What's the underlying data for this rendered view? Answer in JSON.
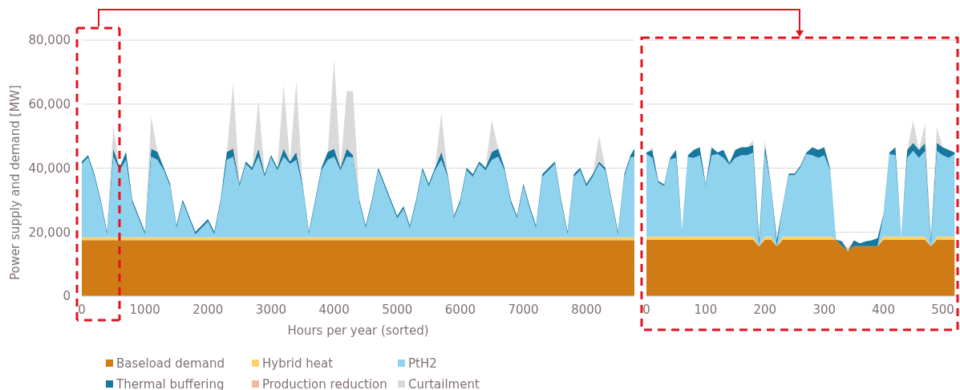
{
  "chart_data": [
    {
      "type": "area",
      "stacked": true,
      "xlabel": "Hours per year (sorted)",
      "ylabel": "Power supply and demand [MW]",
      "xlim": [
        0,
        8760
      ],
      "ylim": [
        0,
        80000
      ],
      "xticks": [
        0,
        1000,
        2000,
        3000,
        4000,
        5000,
        6000,
        7000,
        8000
      ],
      "yticks": [
        0,
        {
          "value": 20000,
          "label": "20,000"
        },
        {
          "value": 40000,
          "label": "40,000"
        },
        {
          "value": 60000,
          "label": "60,000"
        },
        {
          "value": 80000,
          "label": "80,000"
        }
      ],
      "grid": "y",
      "legend": "bottom",
      "x": [
        0,
        100,
        200,
        300,
        400,
        500,
        600,
        700,
        800,
        900,
        1000,
        1100,
        1200,
        1300,
        1400,
        1500,
        1600,
        1700,
        1800,
        1900,
        2000,
        2100,
        2200,
        2300,
        2400,
        2500,
        2600,
        2700,
        2800,
        2900,
        3000,
        3100,
        3200,
        3300,
        3400,
        3500,
        3600,
        3700,
        3800,
        3900,
        4000,
        4100,
        4200,
        4300,
        4400,
        4500,
        4600,
        4700,
        4800,
        4900,
        5000,
        5100,
        5200,
        5300,
        5400,
        5500,
        5600,
        5700,
        5800,
        5900,
        6000,
        6100,
        6200,
        6300,
        6400,
        6500,
        6600,
        6700,
        6800,
        6900,
        7000,
        7100,
        7200,
        7300,
        7400,
        7500,
        7600,
        7700,
        7800,
        7900,
        8000,
        8100,
        8200,
        8300,
        8400,
        8500,
        8600,
        8700,
        8760
      ],
      "series": [
        {
          "name": "Baseload demand",
          "color": "#d07c16",
          "values": [
            17500,
            17500,
            17500,
            17500,
            17500,
            17500,
            17500,
            17500,
            17500,
            17500,
            17500,
            17500,
            17500,
            17500,
            17500,
            17500,
            17500,
            17500,
            17500,
            17500,
            17500,
            17500,
            17500,
            17500,
            17500,
            17500,
            17500,
            17500,
            17500,
            17500,
            17500,
            17500,
            17500,
            17500,
            17500,
            17500,
            17500,
            17500,
            17500,
            17500,
            17500,
            17500,
            17500,
            17500,
            17500,
            17500,
            17500,
            17500,
            17500,
            17500,
            17500,
            17500,
            17500,
            17500,
            17500,
            17500,
            17500,
            17500,
            17500,
            17500,
            17500,
            17500,
            17500,
            17500,
            17500,
            17500,
            17500,
            17500,
            17500,
            17500,
            17500,
            17500,
            17500,
            17500,
            17500,
            17500,
            17500,
            17500,
            17500,
            17500,
            17500,
            17500,
            17500,
            17500,
            17500,
            17500,
            17500,
            17500,
            17500
          ]
        },
        {
          "name": "Hybrid heat",
          "color": "#ffd166",
          "values": [
            900,
            900,
            900,
            900,
            900,
            900,
            900,
            900,
            900,
            900,
            900,
            900,
            900,
            900,
            900,
            900,
            900,
            900,
            900,
            900,
            900,
            900,
            900,
            900,
            900,
            900,
            900,
            900,
            900,
            900,
            900,
            900,
            900,
            900,
            900,
            900,
            900,
            900,
            900,
            900,
            900,
            900,
            900,
            900,
            900,
            900,
            900,
            900,
            900,
            900,
            900,
            900,
            900,
            900,
            900,
            900,
            900,
            900,
            900,
            900,
            900,
            900,
            900,
            900,
            900,
            900,
            900,
            900,
            900,
            900,
            900,
            900,
            900,
            900,
            900,
            900,
            900,
            900,
            900,
            900,
            900,
            900,
            900,
            900,
            900,
            900,
            900,
            900,
            900
          ]
        },
        {
          "name": "PtH2",
          "color": "#8fd3ee",
          "values": [
            22900,
            24900,
            18900,
            10900,
            900,
            25200,
            20900,
            24200,
            10900,
            5900,
            900,
            25200,
            24200,
            20900,
            15900,
            2900,
            10900,
            5900,
            900,
            2900,
            4900,
            900,
            10900,
            24200,
            25200,
            15900,
            22900,
            20900,
            25200,
            18900,
            24900,
            20900,
            25200,
            22900,
            24200,
            15900,
            900,
            10900,
            20900,
            24200,
            25200,
            20900,
            25200,
            24900,
            10900,
            2900,
            10900,
            20900,
            15900,
            10900,
            5900,
            8900,
            2900,
            10900,
            20900,
            15900,
            20900,
            24200,
            18900,
            5900,
            10900,
            20900,
            18900,
            22900,
            20900,
            24200,
            25200,
            20900,
            10900,
            5900,
            15900,
            8900,
            2900,
            18900,
            20900,
            22900,
            10900,
            900,
            18900,
            20900,
            15900,
            18900,
            22900,
            20900,
            10900,
            900,
            18900,
            24900,
            25200
          ]
        },
        {
          "name": "Thermal buffering",
          "color": "#16779f",
          "values": [
            800,
            800,
            800,
            800,
            800,
            2500,
            800,
            2500,
            800,
            800,
            800,
            2500,
            2500,
            800,
            800,
            800,
            800,
            800,
            800,
            800,
            800,
            800,
            800,
            2500,
            2500,
            800,
            800,
            800,
            2500,
            800,
            800,
            800,
            2500,
            800,
            2500,
            800,
            800,
            800,
            800,
            2500,
            2500,
            800,
            2500,
            800,
            800,
            800,
            800,
            800,
            800,
            800,
            800,
            800,
            800,
            800,
            800,
            800,
            800,
            2500,
            800,
            800,
            800,
            800,
            800,
            800,
            800,
            2500,
            2500,
            800,
            800,
            800,
            800,
            800,
            800,
            800,
            800,
            800,
            800,
            800,
            800,
            800,
            800,
            800,
            800,
            800,
            800,
            800,
            800,
            800,
            2500
          ]
        },
        {
          "name": "Production reduction",
          "color": "#f4b89a",
          "values": [
            0,
            0,
            0,
            0,
            0,
            0,
            0,
            0,
            0,
            0,
            0,
            0,
            0,
            0,
            0,
            0,
            0,
            0,
            0,
            0,
            0,
            0,
            0,
            0,
            500,
            0,
            0,
            0,
            0,
            0,
            0,
            0,
            0,
            0,
            0,
            0,
            0,
            0,
            0,
            0,
            0,
            0,
            0,
            0,
            0,
            0,
            0,
            0,
            0,
            0,
            0,
            0,
            0,
            0,
            0,
            0,
            0,
            0,
            0,
            0,
            0,
            0,
            0,
            0,
            0,
            0,
            0,
            0,
            0,
            0,
            0,
            0,
            0,
            0,
            0,
            0,
            0,
            0,
            0,
            0,
            0,
            0,
            0,
            0,
            0,
            0,
            0,
            0,
            0
          ]
        },
        {
          "name": "Curtailment",
          "color": "#d9d9d9",
          "values": [
            0,
            0,
            0,
            0,
            0,
            7000,
            0,
            0,
            0,
            0,
            0,
            10000,
            0,
            0,
            0,
            0,
            0,
            0,
            0,
            0,
            0,
            0,
            0,
            0,
            20000,
            0,
            0,
            0,
            15000,
            0,
            0,
            0,
            20000,
            0,
            22000,
            0,
            0,
            0,
            0,
            0,
            28000,
            0,
            18000,
            20000,
            0,
            0,
            0,
            0,
            0,
            0,
            0,
            0,
            0,
            0,
            0,
            0,
            0,
            12000,
            0,
            0,
            0,
            0,
            0,
            0,
            0,
            10000,
            0,
            0,
            0,
            0,
            0,
            0,
            0,
            0,
            0,
            0,
            0,
            0,
            0,
            0,
            0,
            0,
            8000,
            0,
            0,
            0,
            0,
            0,
            0
          ]
        }
      ]
    },
    {
      "type": "area",
      "stacked": true,
      "xlim": [
        0,
        525
      ],
      "ylim": [
        0,
        80000
      ],
      "xticks": [
        0,
        100,
        200,
        300,
        400,
        500
      ],
      "yticks": [
        0,
        20000,
        40000,
        60000,
        80000
      ],
      "grid": "y",
      "tick_labels": "x",
      "x": [
        0,
        10,
        20,
        30,
        40,
        50,
        60,
        70,
        80,
        90,
        100,
        110,
        120,
        130,
        140,
        150,
        160,
        170,
        180,
        190,
        200,
        210,
        220,
        230,
        240,
        250,
        260,
        270,
        280,
        290,
        300,
        310,
        320,
        330,
        340,
        350,
        360,
        370,
        380,
        390,
        400,
        410,
        420,
        430,
        440,
        450,
        460,
        470,
        480,
        490,
        500,
        510,
        520
      ],
      "series": [
        {
          "color": "#d07c16",
          "values": [
            17700,
            17700,
            17700,
            17700,
            17700,
            17700,
            17700,
            17700,
            17700,
            17700,
            17700,
            17700,
            17700,
            17700,
            17700,
            17700,
            17700,
            17700,
            17700,
            15600,
            17700,
            17700,
            15600,
            17700,
            17700,
            17700,
            17700,
            17700,
            17700,
            17700,
            17700,
            17700,
            17700,
            15600,
            14000,
            15600,
            15600,
            15600,
            15600,
            15600,
            17700,
            17700,
            17700,
            17700,
            17700,
            17700,
            17700,
            17700,
            15600,
            17700,
            17700,
            17700,
            17700
          ]
        },
        {
          "color": "#ffd166",
          "values": [
            900,
            900,
            900,
            900,
            900,
            900,
            900,
            900,
            900,
            900,
            900,
            900,
            900,
            900,
            900,
            900,
            900,
            900,
            900,
            0,
            900,
            900,
            0,
            900,
            900,
            900,
            900,
            900,
            900,
            900,
            900,
            900,
            0,
            0,
            0,
            0,
            0,
            0,
            0,
            0,
            900,
            900,
            900,
            900,
            900,
            900,
            900,
            900,
            0,
            900,
            900,
            900,
            900
          ]
        },
        {
          "color": "#8fd3ee",
          "values": [
            25800,
            24600,
            16900,
            15800,
            24100,
            24600,
            900,
            24900,
            24600,
            25400,
            15800,
            25400,
            25800,
            24600,
            22500,
            24600,
            25400,
            25400,
            26200,
            0,
            26200,
            15800,
            0,
            9100,
            19200,
            19200,
            21700,
            25800,
            25400,
            24600,
            25400,
            20800,
            0,
            0,
            0,
            0,
            0,
            0,
            0,
            0,
            6500,
            25800,
            25400,
            0,
            24600,
            26800,
            24600,
            26800,
            0,
            26800,
            25400,
            24600,
            25800
          ]
        },
        {
          "color": "#16779f",
          "values": [
            500,
            2500,
            500,
            500,
            500,
            2500,
            500,
            500,
            2500,
            2500,
            500,
            2500,
            500,
            2500,
            500,
            2500,
            2500,
            2500,
            2500,
            2100,
            2500,
            500,
            2100,
            500,
            500,
            500,
            500,
            500,
            2500,
            2500,
            2500,
            500,
            0,
            1500,
            0,
            1800,
            900,
            1500,
            1800,
            2500,
            500,
            500,
            2500,
            0,
            2500,
            2500,
            2500,
            2500,
            2100,
            2500,
            2500,
            2500,
            500
          ]
        },
        {
          "color": "#f4b89a",
          "values": [
            null,
            null,
            null,
            null,
            null,
            null,
            null,
            null,
            null,
            null,
            null,
            null,
            null,
            null,
            null,
            null,
            null,
            null,
            null,
            null,
            null,
            null,
            null,
            null,
            null,
            null,
            null,
            null,
            null,
            null,
            null,
            null,
            null,
            0,
            1000,
            0,
            null,
            null,
            null,
            null,
            null,
            null,
            null,
            null,
            null,
            null,
            null,
            null,
            null,
            null,
            null,
            null,
            null
          ]
        },
        {
          "color": "#d9d9d9",
          "values": [
            0,
            800,
            0,
            null,
            null,
            null,
            null,
            null,
            null,
            null,
            null,
            null,
            null,
            null,
            null,
            null,
            null,
            0,
            1500,
            0,
            1500,
            0,
            null,
            null,
            null,
            null,
            null,
            null,
            null,
            null,
            null,
            null,
            null,
            null,
            null,
            null,
            null,
            null,
            null,
            null,
            null,
            null,
            null,
            null,
            0,
            7000,
            0,
            6000,
            0,
            5000,
            0,
            null,
            null
          ]
        }
      ]
    }
  ]
}
